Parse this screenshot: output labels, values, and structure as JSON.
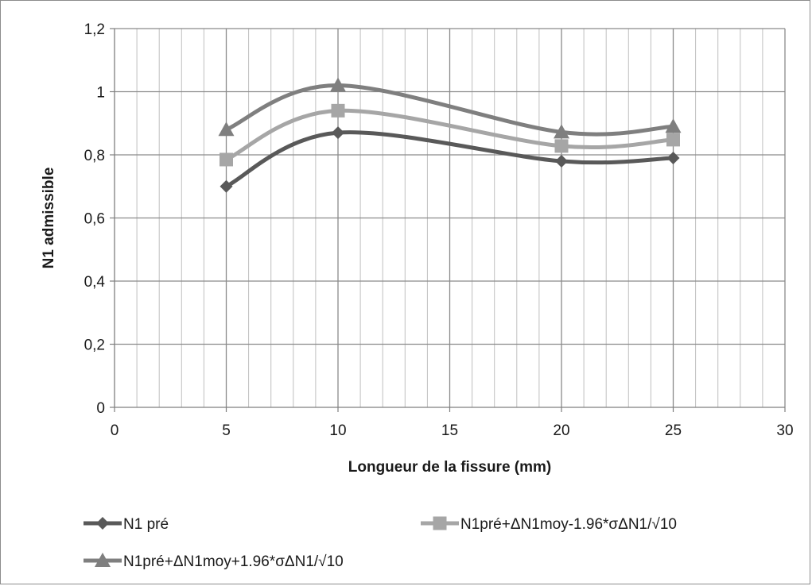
{
  "chart_data": {
    "type": "line",
    "title": "",
    "xlabel": "Longueur de la fissure (mm)",
    "ylabel": "N1 admissible",
    "xlim": [
      0,
      30
    ],
    "ylim": [
      0,
      1.2
    ],
    "x_ticks": [
      "0",
      "5",
      "10",
      "15",
      "20",
      "25",
      "30"
    ],
    "y_ticks": [
      "0",
      "0,2",
      "0,4",
      "0,6",
      "0,8",
      "1",
      "1,2"
    ],
    "grid": true,
    "smooth": true,
    "legend_position": "bottom",
    "series": [
      {
        "name": "N1 pré",
        "marker": "diamond",
        "color": "#595959",
        "x": [
          5,
          10,
          20,
          25
        ],
        "y": [
          0.7,
          0.87,
          0.78,
          0.79
        ]
      },
      {
        "name": "N1pré+ΔN1moy-1.96*σΔN1/√10",
        "marker": "square",
        "color": "#a6a6a6",
        "x": [
          5,
          10,
          20,
          25
        ],
        "y": [
          0.785,
          0.94,
          0.828,
          0.848
        ]
      },
      {
        "name": "N1pré+ΔN1moy+1.96*σΔN1/√10",
        "marker": "triangle",
        "color": "#7f7f7f",
        "x": [
          5,
          10,
          20,
          25
        ],
        "y": [
          0.88,
          1.02,
          0.872,
          0.89
        ]
      }
    ]
  }
}
